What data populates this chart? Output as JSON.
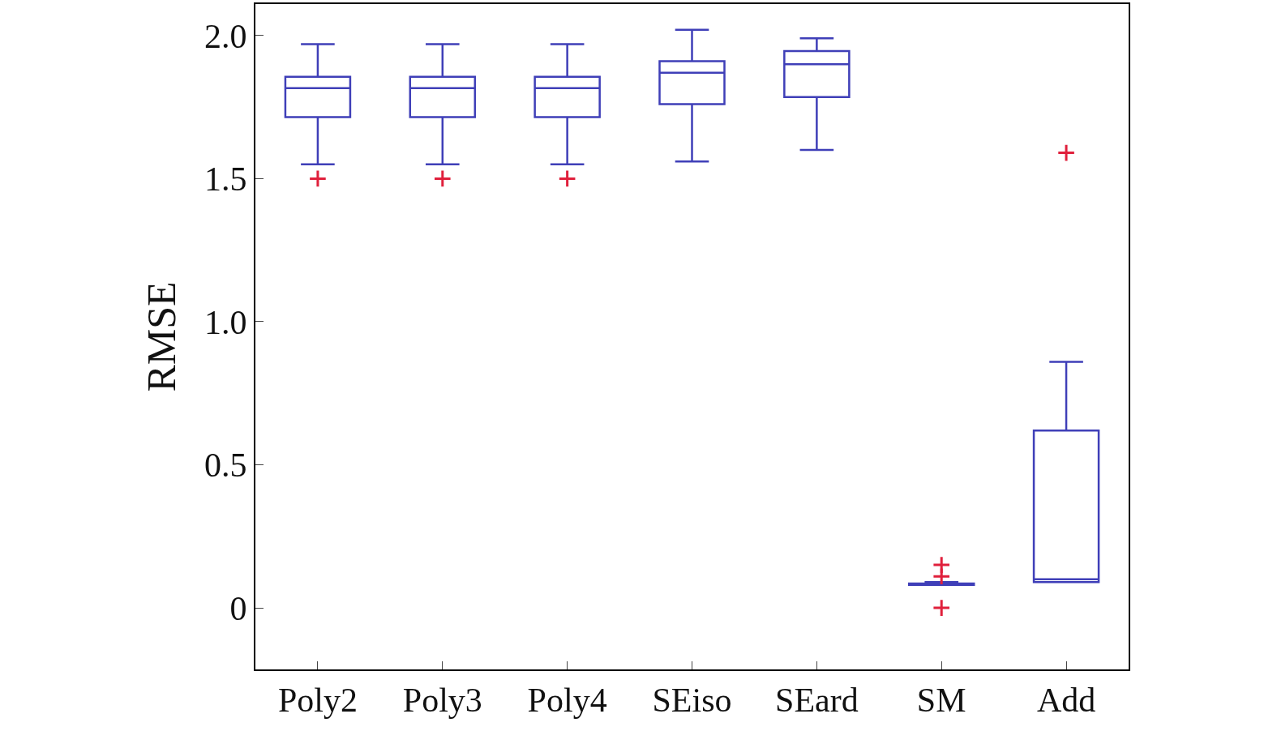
{
  "chart_data": {
    "type": "box",
    "ylabel": "RMSE",
    "categories": [
      "Poly2",
      "Poly3",
      "Poly4",
      "SEiso",
      "SEard",
      "SM",
      "Add"
    ],
    "ylim": [
      -0.215,
      2.11
    ],
    "yticks": [
      {
        "value": 0,
        "label": "0"
      },
      0.5,
      {
        "value": 1,
        "label": "1.0"
      },
      1.5,
      {
        "value": 2,
        "label": "2.0"
      }
    ],
    "series": [
      {
        "color": "#3f3fb8",
        "boxes": [
          {
            "low": 1.55,
            "q1": 1.715,
            "median": 1.816,
            "q3": 1.856,
            "high": 1.97,
            "outliers": [
              1.5
            ]
          },
          {
            "low": 1.55,
            "q1": 1.715,
            "median": 1.816,
            "q3": 1.856,
            "high": 1.97,
            "outliers": [
              1.5
            ]
          },
          {
            "low": 1.55,
            "q1": 1.715,
            "median": 1.816,
            "q3": 1.856,
            "high": 1.97,
            "outliers": [
              1.5
            ]
          },
          {
            "low": 1.56,
            "q1": 1.76,
            "median": 1.87,
            "q3": 1.91,
            "high": 2.02
          },
          {
            "low": 1.6,
            "q1": 1.785,
            "median": 1.9,
            "q3": 1.946,
            "high": 1.99
          },
          {
            "low": 0.08,
            "q1": 0.08,
            "median": 0.085,
            "q3": 0.085,
            "high": 0.09,
            "outliers": [
              0.15,
              0.11,
              0.0
            ]
          },
          {
            "low": 0.09,
            "q1": 0.09,
            "median": 0.1,
            "q3": 0.62,
            "high": 0.86,
            "outliers": [
              1.59
            ]
          }
        ]
      }
    ]
  }
}
